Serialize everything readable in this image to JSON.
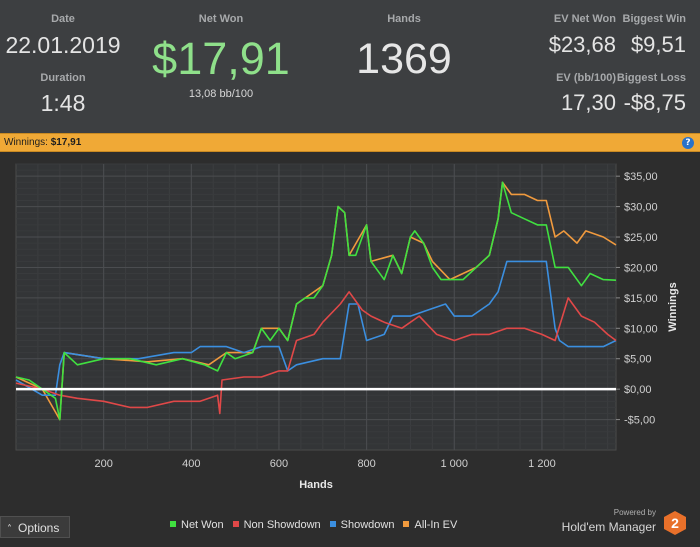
{
  "stats": {
    "date": {
      "label": "Date",
      "value": "22.01.2019"
    },
    "duration": {
      "label": "Duration",
      "value": "1:48"
    },
    "net_won": {
      "label": "Net Won",
      "value": "$17,91",
      "sub": "13,08 bb/100"
    },
    "hands": {
      "label": "Hands",
      "value": "1369"
    },
    "ev_net_won": {
      "label": "EV Net Won",
      "value": "$23,68"
    },
    "biggest_win": {
      "label": "Biggest Win",
      "value": "$9,51"
    },
    "ev_bb": {
      "label": "EV (bb/100)",
      "value": "17,30"
    },
    "biggest_loss": {
      "label": "Biggest Loss",
      "value": "-$8,75"
    }
  },
  "winnings_bar": {
    "label": "Winnings:",
    "value": "$17,91",
    "help_icon": "question-icon",
    "help_glyph": "?"
  },
  "options_label": "Options",
  "options_icon": "chevron-up-icon",
  "options_glyph": "˄",
  "brand": {
    "powered": "Powered by",
    "name": "Hold'em Manager",
    "logo_text": "2"
  },
  "colors": {
    "net_won": "#40e040",
    "non_showdown": "#e04848",
    "showdown": "#3b8fe0",
    "all_in_ev": "#f09a3e",
    "accent": "#f0a936"
  },
  "chart_data": {
    "type": "line",
    "xlabel": "Hands",
    "ylabel": "Winnings",
    "xlim": [
      0,
      1369
    ],
    "ylim": [
      -10,
      37
    ],
    "x_ticks": [
      200,
      400,
      600,
      800,
      1000,
      1200
    ],
    "x_tick_labels": [
      "200",
      "400",
      "600",
      "800",
      "1 000",
      "1 200"
    ],
    "y_ticks": [
      -5,
      0,
      5,
      10,
      15,
      20,
      25,
      30,
      35
    ],
    "y_tick_labels": [
      "-$5,00",
      "$0,00",
      "$5,00",
      "$10,00",
      "$15,00",
      "$20,00",
      "$25,00",
      "$30,00",
      "$35,00"
    ],
    "legend_position": "bottom",
    "zero_line": true,
    "grid": true,
    "series": [
      {
        "name": "Net Won",
        "color": "#40e040",
        "points": [
          [
            0,
            2
          ],
          [
            30,
            1.5
          ],
          [
            60,
            0
          ],
          [
            90,
            -1.5
          ],
          [
            100,
            -5
          ],
          [
            110,
            6
          ],
          [
            140,
            4
          ],
          [
            200,
            5
          ],
          [
            260,
            5
          ],
          [
            320,
            4
          ],
          [
            380,
            5
          ],
          [
            430,
            4
          ],
          [
            460,
            3
          ],
          [
            480,
            6
          ],
          [
            500,
            5
          ],
          [
            540,
            6
          ],
          [
            560,
            10
          ],
          [
            580,
            8
          ],
          [
            600,
            10
          ],
          [
            610,
            9
          ],
          [
            620,
            8
          ],
          [
            640,
            14
          ],
          [
            660,
            15
          ],
          [
            680,
            15
          ],
          [
            700,
            17
          ],
          [
            720,
            22
          ],
          [
            735,
            30
          ],
          [
            750,
            29
          ],
          [
            760,
            22
          ],
          [
            775,
            22
          ],
          [
            800,
            27
          ],
          [
            810,
            21
          ],
          [
            840,
            18
          ],
          [
            860,
            22
          ],
          [
            880,
            19
          ],
          [
            900,
            25
          ],
          [
            910,
            26
          ],
          [
            930,
            24
          ],
          [
            950,
            20
          ],
          [
            970,
            18
          ],
          [
            990,
            18
          ],
          [
            1020,
            18
          ],
          [
            1050,
            20
          ],
          [
            1080,
            22
          ],
          [
            1100,
            28
          ],
          [
            1110,
            34
          ],
          [
            1130,
            29
          ],
          [
            1160,
            28
          ],
          [
            1190,
            27
          ],
          [
            1210,
            27
          ],
          [
            1230,
            20
          ],
          [
            1260,
            20
          ],
          [
            1290,
            17
          ],
          [
            1310,
            19
          ],
          [
            1340,
            18
          ],
          [
            1369,
            17.9
          ]
        ]
      },
      {
        "name": "Non Showdown",
        "color": "#e04848",
        "points": [
          [
            0,
            1
          ],
          [
            60,
            0
          ],
          [
            100,
            -1
          ],
          [
            140,
            -1.5
          ],
          [
            200,
            -2
          ],
          [
            260,
            -3
          ],
          [
            300,
            -3
          ],
          [
            360,
            -2
          ],
          [
            420,
            -2
          ],
          [
            460,
            -1
          ],
          [
            465,
            -4
          ],
          [
            470,
            1.5
          ],
          [
            520,
            2
          ],
          [
            560,
            2
          ],
          [
            600,
            3
          ],
          [
            620,
            3
          ],
          [
            640,
            8
          ],
          [
            680,
            9
          ],
          [
            700,
            11
          ],
          [
            740,
            14
          ],
          [
            760,
            16
          ],
          [
            790,
            13
          ],
          [
            810,
            12
          ],
          [
            840,
            11
          ],
          [
            880,
            10
          ],
          [
            920,
            12
          ],
          [
            960,
            9
          ],
          [
            1000,
            8
          ],
          [
            1040,
            9
          ],
          [
            1080,
            9
          ],
          [
            1120,
            10
          ],
          [
            1160,
            10
          ],
          [
            1200,
            9
          ],
          [
            1230,
            8
          ],
          [
            1260,
            15
          ],
          [
            1290,
            12
          ],
          [
            1320,
            11
          ],
          [
            1350,
            9
          ],
          [
            1369,
            8
          ]
        ]
      },
      {
        "name": "Showdown",
        "color": "#3b8fe0",
        "points": [
          [
            0,
            1.5
          ],
          [
            60,
            -1
          ],
          [
            90,
            -1
          ],
          [
            100,
            4
          ],
          [
            110,
            6
          ],
          [
            200,
            5
          ],
          [
            280,
            5
          ],
          [
            360,
            6
          ],
          [
            400,
            6
          ],
          [
            420,
            7
          ],
          [
            470,
            7
          ],
          [
            480,
            7
          ],
          [
            520,
            6
          ],
          [
            560,
            7
          ],
          [
            600,
            7
          ],
          [
            620,
            3
          ],
          [
            640,
            4
          ],
          [
            700,
            5
          ],
          [
            740,
            5
          ],
          [
            760,
            14
          ],
          [
            780,
            14
          ],
          [
            800,
            8
          ],
          [
            840,
            9
          ],
          [
            860,
            12
          ],
          [
            900,
            12
          ],
          [
            940,
            13
          ],
          [
            980,
            14
          ],
          [
            1000,
            12
          ],
          [
            1040,
            12
          ],
          [
            1060,
            13
          ],
          [
            1080,
            14
          ],
          [
            1100,
            16
          ],
          [
            1120,
            21
          ],
          [
            1160,
            21
          ],
          [
            1180,
            21
          ],
          [
            1210,
            21
          ],
          [
            1230,
            10
          ],
          [
            1240,
            8
          ],
          [
            1260,
            7
          ],
          [
            1300,
            7
          ],
          [
            1340,
            7
          ],
          [
            1369,
            8
          ]
        ]
      },
      {
        "name": "All-In EV",
        "color": "#f09a3e",
        "points": [
          [
            0,
            2
          ],
          [
            60,
            0
          ],
          [
            100,
            -5
          ],
          [
            110,
            6
          ],
          [
            200,
            5
          ],
          [
            300,
            4.5
          ],
          [
            380,
            5
          ],
          [
            440,
            4
          ],
          [
            480,
            6
          ],
          [
            540,
            6
          ],
          [
            560,
            10
          ],
          [
            600,
            10
          ],
          [
            620,
            8
          ],
          [
            640,
            14
          ],
          [
            700,
            17
          ],
          [
            720,
            22
          ],
          [
            735,
            30
          ],
          [
            750,
            29
          ],
          [
            760,
            22
          ],
          [
            800,
            27
          ],
          [
            810,
            21
          ],
          [
            860,
            22
          ],
          [
            880,
            19
          ],
          [
            900,
            25
          ],
          [
            930,
            24
          ],
          [
            950,
            21
          ],
          [
            990,
            18
          ],
          [
            1050,
            20
          ],
          [
            1080,
            22
          ],
          [
            1100,
            28
          ],
          [
            1110,
            34
          ],
          [
            1130,
            32
          ],
          [
            1160,
            32
          ],
          [
            1190,
            31
          ],
          [
            1210,
            31
          ],
          [
            1230,
            25
          ],
          [
            1250,
            26
          ],
          [
            1280,
            24
          ],
          [
            1300,
            26
          ],
          [
            1340,
            25
          ],
          [
            1369,
            23.7
          ]
        ]
      }
    ]
  }
}
